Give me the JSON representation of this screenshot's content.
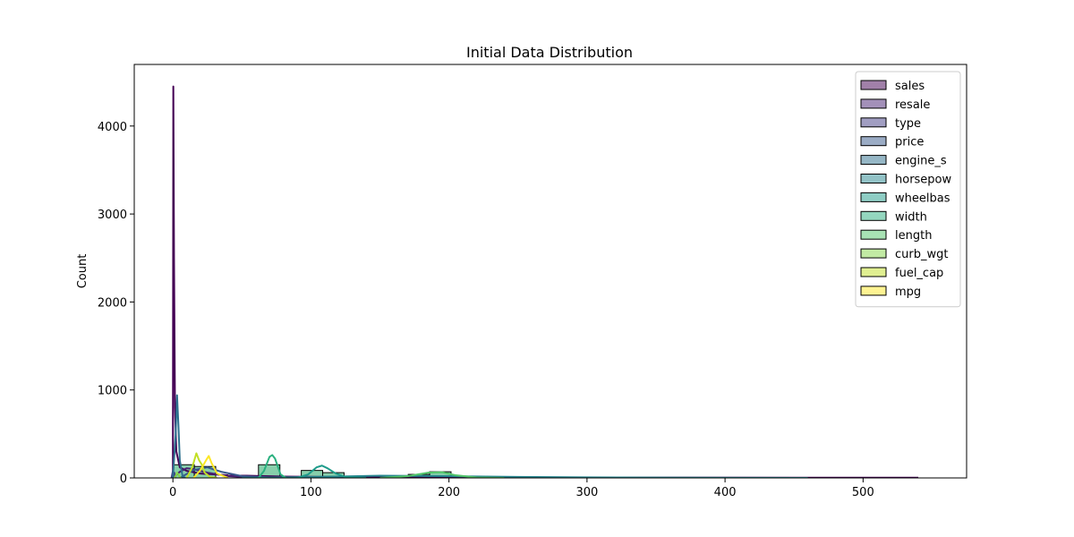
{
  "chart_data": {
    "type": "histogram",
    "title": "Initial Data Distribution",
    "xlabel": "",
    "ylabel": "Count",
    "xlim": [
      -28,
      575
    ],
    "ylim": [
      0,
      4700
    ],
    "x_ticks": [
      0,
      100,
      200,
      300,
      400,
      500
    ],
    "y_ticks": [
      0,
      1000,
      2000,
      3000,
      4000
    ],
    "grid": false,
    "legend_position": "top-right",
    "bins": [
      {
        "x0": 0,
        "x1": 15.5,
        "count": 150
      },
      {
        "x0": 15.5,
        "x1": 31,
        "count": 130
      },
      {
        "x0": 62,
        "x1": 77.5,
        "count": 150
      },
      {
        "x0": 93,
        "x1": 108.5,
        "count": 85
      },
      {
        "x0": 108.5,
        "x1": 124,
        "count": 60
      },
      {
        "x0": 170.5,
        "x1": 186,
        "count": 40
      },
      {
        "x0": 186,
        "x1": 201.5,
        "count": 70
      }
    ],
    "series": [
      {
        "name": "sales",
        "color": "#440154"
      },
      {
        "name": "resale",
        "color": "#482173"
      },
      {
        "name": "type",
        "color": "#433e85"
      },
      {
        "name": "price",
        "color": "#38598c"
      },
      {
        "name": "engine_s",
        "color": "#2d708e"
      },
      {
        "name": "horsepow",
        "color": "#25858e"
      },
      {
        "name": "wheelbas",
        "color": "#1e9b8a"
      },
      {
        "name": "width",
        "color": "#2ab07f"
      },
      {
        "name": "length",
        "color": "#52c569"
      },
      {
        "name": "curb_wgt",
        "color": "#86d549"
      },
      {
        "name": "fuel_cap",
        "color": "#c2df23"
      },
      {
        "name": "mpg",
        "color": "#fde725"
      }
    ],
    "kde_curves": [
      {
        "series": "sales",
        "points": [
          [
            0,
            0
          ],
          [
            0.3,
            4450
          ],
          [
            0.8,
            2500
          ],
          [
            1.5,
            800
          ],
          [
            2.5,
            300
          ],
          [
            5,
            120
          ],
          [
            10,
            80
          ],
          [
            20,
            50
          ],
          [
            40,
            30
          ],
          [
            80,
            15
          ],
          [
            150,
            8
          ],
          [
            300,
            4
          ],
          [
            540,
            2
          ]
        ]
      },
      {
        "series": "resale",
        "points": [
          [
            0,
            0
          ],
          [
            5,
            70
          ],
          [
            10,
            110
          ],
          [
            15,
            100
          ],
          [
            25,
            60
          ],
          [
            40,
            20
          ],
          [
            60,
            5
          ],
          [
            80,
            0
          ]
        ]
      },
      {
        "series": "price",
        "points": [
          [
            5,
            0
          ],
          [
            15,
            90
          ],
          [
            25,
            120
          ],
          [
            35,
            70
          ],
          [
            50,
            20
          ],
          [
            70,
            5
          ],
          [
            85,
            0
          ]
        ]
      },
      {
        "series": "type",
        "points": [
          [
            -1,
            0
          ],
          [
            0,
            80
          ],
          [
            0.5,
            40
          ],
          [
            1,
            60
          ],
          [
            2,
            0
          ]
        ]
      },
      {
        "series": "engine_s",
        "points": [
          [
            0,
            0
          ],
          [
            2,
            500
          ],
          [
            3,
            940
          ],
          [
            4,
            600
          ],
          [
            5,
            200
          ],
          [
            7,
            20
          ],
          [
            9,
            0
          ]
        ]
      },
      {
        "series": "horsepow",
        "points": [
          [
            50,
            0
          ],
          [
            100,
            10
          ],
          [
            150,
            25
          ],
          [
            200,
            20
          ],
          [
            250,
            12
          ],
          [
            300,
            6
          ],
          [
            400,
            1
          ],
          [
            460,
            0
          ]
        ]
      },
      {
        "series": "wheelbas",
        "points": [
          [
            90,
            0
          ],
          [
            98,
            40
          ],
          [
            104,
            120
          ],
          [
            108,
            140
          ],
          [
            112,
            110
          ],
          [
            118,
            50
          ],
          [
            125,
            10
          ],
          [
            140,
            0
          ]
        ]
      },
      {
        "series": "width",
        "points": [
          [
            62,
            0
          ],
          [
            66,
            80
          ],
          [
            70,
            240
          ],
          [
            72,
            260
          ],
          [
            74,
            220
          ],
          [
            78,
            40
          ],
          [
            82,
            0
          ]
        ]
      },
      {
        "series": "length",
        "points": [
          [
            150,
            0
          ],
          [
            170,
            20
          ],
          [
            185,
            60
          ],
          [
            195,
            65
          ],
          [
            205,
            30
          ],
          [
            220,
            5
          ],
          [
            240,
            0
          ]
        ]
      },
      {
        "series": "curb_wgt",
        "points": [
          [
            1,
            0
          ],
          [
            2,
            20
          ],
          [
            3,
            60
          ],
          [
            4,
            40
          ],
          [
            5,
            10
          ],
          [
            6,
            0
          ]
        ]
      },
      {
        "series": "fuel_cap",
        "points": [
          [
            10,
            0
          ],
          [
            14,
            120
          ],
          [
            17,
            280
          ],
          [
            19,
            200
          ],
          [
            21,
            150
          ],
          [
            23,
            60
          ],
          [
            27,
            10
          ],
          [
            32,
            0
          ]
        ]
      },
      {
        "series": "mpg",
        "points": [
          [
            15,
            0
          ],
          [
            20,
            90
          ],
          [
            24,
            200
          ],
          [
            26,
            250
          ],
          [
            28,
            170
          ],
          [
            32,
            50
          ],
          [
            40,
            0
          ]
        ]
      }
    ]
  }
}
